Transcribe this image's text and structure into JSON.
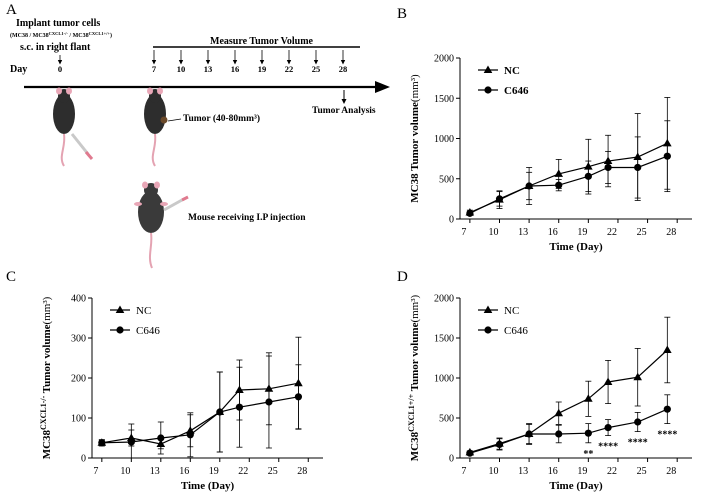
{
  "panels": {
    "A": {
      "letter": "A",
      "implant_title": "Implant tumor cells",
      "implant_cells": "(MC38 / MC38",
      "implant_cells_sup1": "CXCL1-/-",
      "implant_cells_mid": " / MC38",
      "implant_cells_sup2": "CXCL1+/+",
      "implant_cells_end": ")",
      "implant_route": "s.c. in right flant",
      "measure_title": "Measure Tumor Volume",
      "day_label": "Day",
      "days": [
        "0",
        "7",
        "10",
        "13",
        "16",
        "19",
        "22",
        "25",
        "28"
      ],
      "tumor_label": "Tumor (40-80mm³)",
      "analysis_label": "Tumor Analysis",
      "injection_label": "Mouse receiving I.P injection"
    },
    "B": {
      "letter": "B"
    },
    "C": {
      "letter": "C"
    },
    "D": {
      "letter": "D"
    }
  },
  "chart_data": [
    {
      "panel": "B",
      "type": "line",
      "ylabel": "MC38 Tumor volume(mm³)",
      "ylabel_prefix": "MC38 Tumor volume",
      "ylabel_unit": "(mm³)",
      "xlabel": "Time (Day)",
      "x": [
        7,
        10,
        13,
        16,
        19,
        21,
        24,
        27
      ],
      "xticks": [
        7,
        10,
        13,
        16,
        19,
        22,
        25,
        28
      ],
      "ylim": [
        0,
        2000
      ],
      "yticks": [
        0,
        500,
        1000,
        1500,
        2000
      ],
      "legend": "top-left",
      "series": [
        {
          "name": "NC",
          "marker": "triangle",
          "values": [
            80,
            240,
            410,
            560,
            650,
            720,
            770,
            940
          ],
          "errors": [
            30,
            110,
            230,
            180,
            340,
            320,
            540,
            570
          ]
        },
        {
          "name": "C646",
          "marker": "circle",
          "values": [
            70,
            250,
            410,
            420,
            530,
            640,
            640,
            780
          ],
          "errors": [
            25,
            90,
            170,
            70,
            190,
            200,
            380,
            440
          ]
        }
      ],
      "annotations": []
    },
    {
      "panel": "C",
      "type": "line",
      "ylabel": "MC38CXCL1-/- Tumor volume(mm³)",
      "ylabel_prefix": "MC38",
      "ylabel_sup": "CXCL1-/-",
      "ylabel_suffix": " Tumor volume",
      "ylabel_unit": "(mm³)",
      "xlabel": "Time (Day)",
      "x": [
        7,
        10,
        13,
        16,
        19,
        21,
        24,
        27
      ],
      "xticks": [
        7,
        10,
        13,
        16,
        19,
        22,
        25,
        28
      ],
      "ylim": [
        0,
        400
      ],
      "yticks": [
        0,
        100,
        200,
        300,
        400
      ],
      "legend": "top-left",
      "series": [
        {
          "name": "NC",
          "marker": "triangle",
          "values": [
            38,
            50,
            35,
            68,
            115,
            170,
            173,
            187
          ],
          "errors": [
            6,
            20,
            12,
            40,
            100,
            75,
            90,
            115
          ]
        },
        {
          "name": "C646",
          "marker": "circle",
          "values": [
            38,
            40,
            50,
            58,
            115,
            127,
            140,
            153
          ],
          "errors": [
            8,
            45,
            40,
            55,
            100,
            100,
            115,
            80
          ]
        }
      ],
      "annotations": []
    },
    {
      "panel": "D",
      "type": "line",
      "ylabel": "MC38CXCL1+/+ Tumor volume(mm³)",
      "ylabel_prefix": "MC38",
      "ylabel_sup": "CXCL1+/+",
      "ylabel_suffix": " Tumor volume",
      "ylabel_unit": "(mm³)",
      "xlabel": "Time (Day)",
      "x": [
        7,
        10,
        13,
        16,
        19,
        21,
        24,
        27
      ],
      "xticks": [
        7,
        10,
        13,
        16,
        19,
        22,
        25,
        28
      ],
      "ylim": [
        0,
        2000
      ],
      "yticks": [
        0,
        500,
        1000,
        1500,
        2000
      ],
      "legend": "top-left",
      "series": [
        {
          "name": "NC",
          "marker": "triangle",
          "values": [
            70,
            180,
            300,
            560,
            740,
            950,
            1010,
            1350
          ],
          "errors": [
            20,
            70,
            130,
            140,
            220,
            270,
            360,
            410
          ]
        },
        {
          "name": "C646",
          "marker": "circle",
          "values": [
            60,
            170,
            300,
            300,
            310,
            380,
            450,
            610
          ],
          "errors": [
            20,
            70,
            120,
            110,
            120,
            100,
            120,
            180
          ]
        }
      ],
      "annotations": [
        {
          "x": 19,
          "text": "**"
        },
        {
          "x": 21,
          "text": "****"
        },
        {
          "x": 24,
          "text": "****"
        },
        {
          "x": 27,
          "text": "****"
        }
      ]
    }
  ]
}
